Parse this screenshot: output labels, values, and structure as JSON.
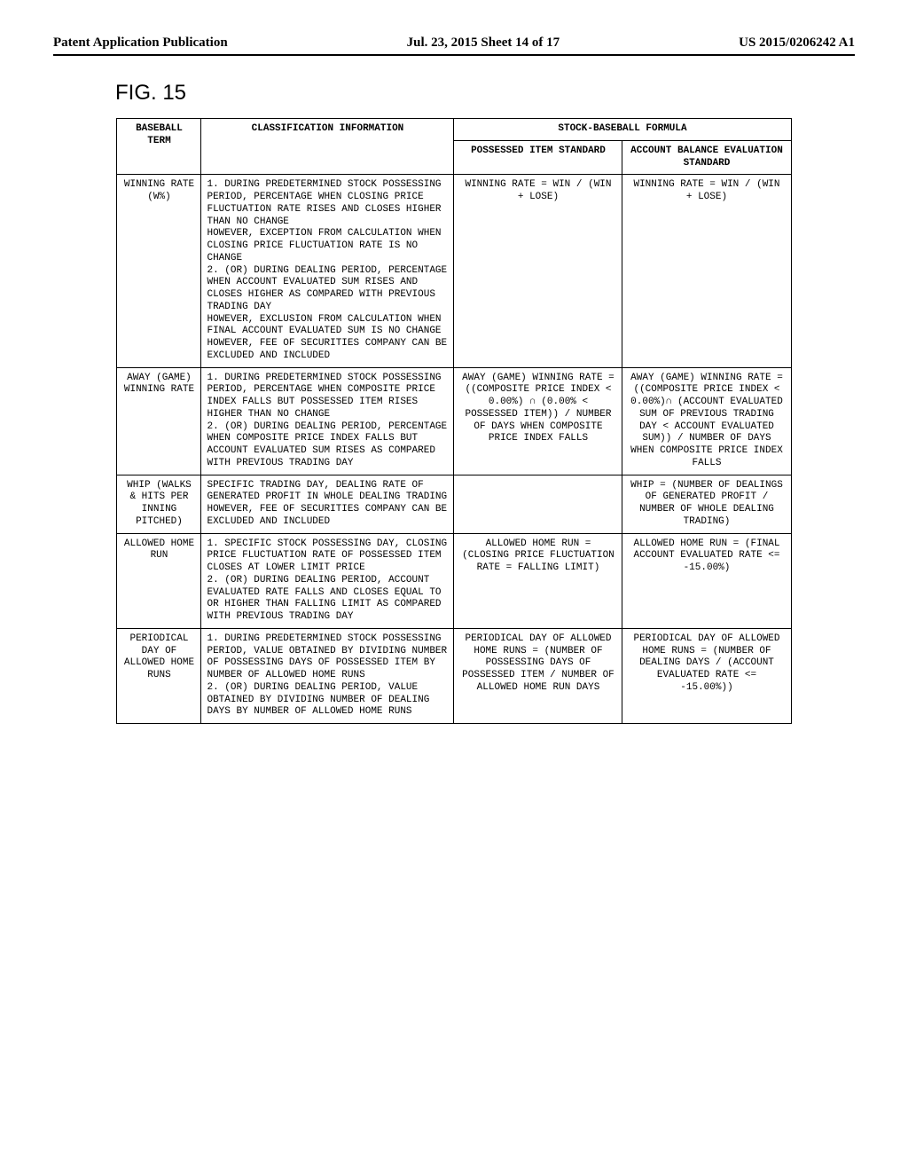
{
  "header": {
    "left": "Patent Application Publication",
    "center": "Jul. 23, 2015  Sheet 14 of 17",
    "right": "US 2015/0206242 A1"
  },
  "figure_label": "FIG. 15",
  "table": {
    "head": {
      "term": "BASEBALL TERM",
      "classification": "CLASSIFICATION INFORMATION",
      "formula_group": "STOCK-BASEBALL FORMULA",
      "possessed": "POSSESSED ITEM STANDARD",
      "account": "ACCOUNT BALANCE EVALUATION STANDARD"
    },
    "rows": [
      {
        "term": "WINNING RATE (W%)",
        "classification": "1. DURING PREDETERMINED STOCK POSSESSING PERIOD, PERCENTAGE WHEN CLOSING PRICE FLUCTUATION RATE RISES AND CLOSES HIGHER THAN NO CHANGE\nHOWEVER, EXCEPTION FROM CALCULATION WHEN CLOSING PRICE FLUCTUATION RATE IS NO CHANGE\n2. (OR) DURING DEALING PERIOD, PERCENTAGE WHEN ACCOUNT EVALUATED SUM RISES AND CLOSES HIGHER AS COMPARED WITH PREVIOUS TRADING DAY\nHOWEVER, EXCLUSION FROM CALCULATION WHEN FINAL ACCOUNT EVALUATED SUM IS NO CHANGE\nHOWEVER, FEE OF SECURITIES COMPANY CAN BE EXCLUDED AND INCLUDED",
        "possessed": "WINNING RATE = WIN / (WIN + LOSE)",
        "account": "WINNING RATE = WIN / (WIN + LOSE)"
      },
      {
        "term": "AWAY (GAME) WINNING RATE",
        "classification": "1. DURING PREDETERMINED STOCK POSSESSING PERIOD, PERCENTAGE WHEN COMPOSITE PRICE INDEX FALLS BUT POSSESSED ITEM RISES HIGHER THAN NO CHANGE\n2. (OR) DURING DEALING PERIOD, PERCENTAGE WHEN COMPOSITE PRICE INDEX FALLS BUT ACCOUNT EVALUATED SUM RISES AS COMPARED WITH PREVIOUS TRADING DAY",
        "possessed": "AWAY (GAME) WINNING RATE = ((COMPOSITE PRICE INDEX < 0.00%) ∩ (0.00% < POSSESSED ITEM)) / NUMBER OF DAYS WHEN COMPOSITE PRICE INDEX FALLS",
        "account": "AWAY (GAME) WINNING RATE = ((COMPOSITE PRICE INDEX < 0.00%)∩ (ACCOUNT EVALUATED SUM OF PREVIOUS TRADING DAY < ACCOUNT EVALUATED SUM)) / NUMBER OF DAYS WHEN COMPOSITE PRICE INDEX FALLS"
      },
      {
        "term": "WHIP (WALKS & HITS PER INNING PITCHED)",
        "classification": "SPECIFIC TRADING DAY, DEALING RATE OF GENERATED PROFIT IN WHOLE DEALING TRADING\nHOWEVER, FEE OF SECURITIES COMPANY CAN BE EXCLUDED AND INCLUDED",
        "possessed": "",
        "account": "WHIP = (NUMBER OF DEALINGS OF GENERATED PROFIT / NUMBER OF WHOLE DEALING TRADING)"
      },
      {
        "term": "ALLOWED HOME RUN",
        "classification": "1. SPECIFIC STOCK POSSESSING DAY, CLOSING PRICE FLUCTUATION RATE OF POSSESSED ITEM CLOSES AT LOWER LIMIT PRICE\n2. (OR) DURING DEALING PERIOD, ACCOUNT EVALUATED RATE FALLS AND CLOSES EQUAL TO OR HIGHER THAN FALLING LIMIT AS COMPARED WITH PREVIOUS TRADING DAY",
        "possessed": "ALLOWED HOME RUN = (CLOSING PRICE FLUCTUATION RATE = FALLING LIMIT)",
        "account": "ALLOWED HOME RUN = (FINAL ACCOUNT EVALUATED RATE <= -15.00%)"
      },
      {
        "term": "PERIODICAL DAY OF ALLOWED HOME RUNS",
        "classification": "1. DURING PREDETERMINED STOCK POSSESSING PERIOD, VALUE OBTAINED BY DIVIDING NUMBER OF POSSESSING DAYS OF POSSESSED ITEM BY NUMBER OF ALLOWED HOME RUNS\n2. (OR) DURING DEALING PERIOD, VALUE OBTAINED BY DIVIDING NUMBER OF DEALING DAYS BY NUMBER OF ALLOWED HOME RUNS",
        "possessed": "PERIODICAL DAY OF ALLOWED HOME RUNS = (NUMBER OF POSSESSING DAYS OF POSSESSED ITEM / NUMBER OF ALLOWED HOME RUN DAYS",
        "account": "PERIODICAL DAY OF ALLOWED HOME RUNS = (NUMBER OF DEALING DAYS / (ACCOUNT EVALUATED RATE <= -15.00%))"
      }
    ]
  }
}
